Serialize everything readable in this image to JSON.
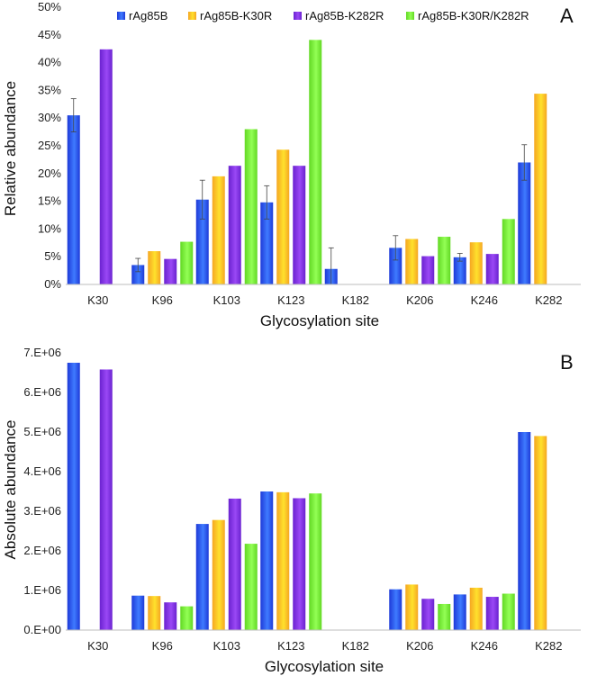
{
  "series_colors": {
    "rAg85B": [
      "#1e3ad8",
      "#3f7bff"
    ],
    "rAg85B-K30R": [
      "#f5a623",
      "#ffe12c"
    ],
    "rAg85B-K282R": [
      "#6a22d0",
      "#9a48f5"
    ],
    "rAg85B-K30R/K282R": [
      "#62d824",
      "#93ff55"
    ]
  },
  "chart_data": [
    {
      "type": "bar",
      "panel": "A",
      "title": "",
      "xlabel": "Glycosylation site",
      "ylabel": "Relative abundance",
      "ylim": [
        0,
        50
      ],
      "yticks": [
        "0%",
        "5%",
        "10%",
        "15%",
        "20%",
        "25%",
        "30%",
        "35%",
        "40%",
        "45%",
        "50%"
      ],
      "categories": [
        "K30",
        "K96",
        "K103",
        "K123",
        "K182",
        "K206",
        "K246",
        "K282"
      ],
      "legend": [
        "rAg85B",
        "rAg85B-K30R",
        "rAg85B-K282R",
        "rAg85B-K30R/K282R"
      ],
      "legend_position": "top",
      "series": [
        {
          "name": "rAg85B",
          "values": [
            30.5,
            3.5,
            15.3,
            14.8,
            2.8,
            6.6,
            4.9,
            22.0
          ],
          "errors": [
            3.0,
            1.2,
            3.5,
            3.0,
            3.8,
            2.2,
            0.7,
            3.2
          ]
        },
        {
          "name": "rAg85B-K30R",
          "values": [
            0,
            6.0,
            19.5,
            24.3,
            0,
            8.2,
            7.6,
            34.4
          ]
        },
        {
          "name": "rAg85B-K282R",
          "values": [
            42.4,
            4.6,
            21.4,
            21.4,
            0,
            5.1,
            5.5,
            0
          ]
        },
        {
          "name": "rAg85B-K30R/K282R",
          "values": [
            0,
            7.7,
            28.0,
            44.1,
            0,
            8.6,
            11.8,
            0
          ]
        }
      ]
    },
    {
      "type": "bar",
      "panel": "B",
      "title": "",
      "xlabel": "Glycosylation site",
      "ylabel": "Absolute abundance",
      "ylim": [
        0,
        7000000
      ],
      "yticks": [
        "0.E+00",
        "1.E+06",
        "2.E+06",
        "3.E+06",
        "4.E+06",
        "5.E+06",
        "6.E+06",
        "7.E+06"
      ],
      "categories": [
        "K30",
        "K96",
        "K103",
        "K123",
        "K182",
        "K206",
        "K246",
        "K282"
      ],
      "series": [
        {
          "name": "rAg85B",
          "values": [
            6750000,
            870000,
            2680000,
            3500000,
            0,
            1030000,
            900000,
            5000000
          ]
        },
        {
          "name": "rAg85B-K30R",
          "values": [
            0,
            860000,
            2780000,
            3480000,
            0,
            1150000,
            1070000,
            4900000
          ]
        },
        {
          "name": "rAg85B-K282R",
          "values": [
            6580000,
            700000,
            3320000,
            3330000,
            0,
            790000,
            840000,
            0
          ]
        },
        {
          "name": "rAg85B-K30R/K282R",
          "values": [
            0,
            600000,
            2180000,
            3450000,
            0,
            660000,
            920000,
            0
          ]
        }
      ]
    }
  ]
}
